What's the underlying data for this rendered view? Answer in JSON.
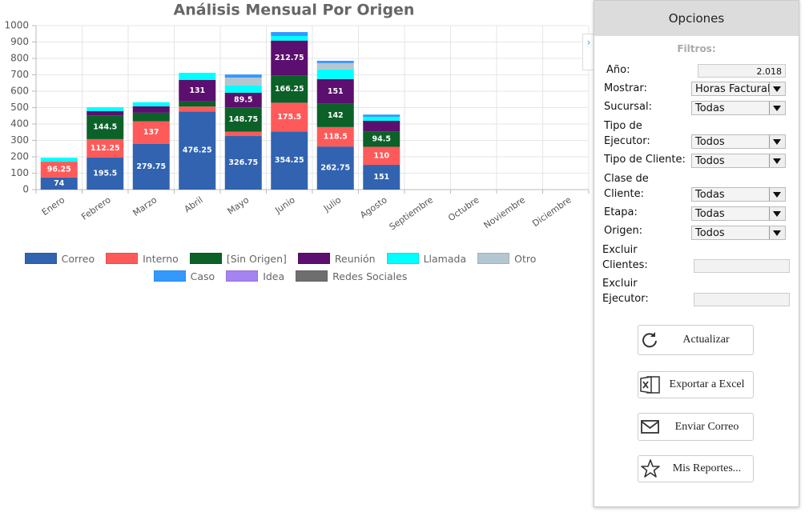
{
  "chart_data": {
    "type": "stacked-bar",
    "title": "Análisis Mensual Por Origen",
    "categories": [
      "Enero",
      "Febrero",
      "Marzo",
      "Abril",
      "Mayo",
      "Junio",
      "Julio",
      "Agosto",
      "Septiembre",
      "Octubre",
      "Noviembre",
      "Diciembre"
    ],
    "series": [
      {
        "name": "Correo",
        "color": "#3163b0",
        "values": [
          74,
          195.5,
          279.75,
          476.25,
          326.75,
          354.25,
          262.75,
          151,
          null,
          null,
          null,
          null
        ]
      },
      {
        "name": "Interno",
        "color": "#ff5a5a",
        "values": [
          96.25,
          112.25,
          137,
          30,
          26,
          175.5,
          118.5,
          110,
          null,
          null,
          null,
          null
        ]
      },
      {
        "name": "[Sin Origen]",
        "color": "#0b6128",
        "values": [
          null,
          144.5,
          52,
          31,
          148.75,
          166.25,
          142,
          94.5,
          null,
          null,
          null,
          null
        ]
      },
      {
        "name": "Reunión",
        "color": "#5b0f6e",
        "values": [
          null,
          26,
          39,
          131,
          89.5,
          212.75,
          151,
          64,
          null,
          null,
          null,
          null
        ]
      },
      {
        "name": "Llamada",
        "color": "#00ffff",
        "values": [
          24,
          24,
          25,
          44,
          43,
          28,
          58,
          24,
          null,
          null,
          null,
          null
        ]
      },
      {
        "name": "Otro",
        "color": "#b4c6d0",
        "values": [
          null,
          null,
          null,
          null,
          49,
          null,
          39,
          null,
          null,
          null,
          null,
          null
        ]
      },
      {
        "name": "Caso",
        "color": "#3399ff",
        "values": [
          null,
          null,
          null,
          null,
          19,
          24,
          14,
          14,
          null,
          null,
          null,
          null
        ]
      },
      {
        "name": "Idea",
        "color": "#a583f0",
        "values": [
          null,
          null,
          null,
          null,
          null,
          null,
          null,
          null,
          null,
          null,
          null,
          null
        ]
      },
      {
        "name": "Redes Sociales",
        "color": "#6e6e6e",
        "values": [
          null,
          null,
          null,
          null,
          null,
          null,
          null,
          null,
          null,
          null,
          null,
          null
        ]
      }
    ],
    "ylim": [
      0,
      1000
    ],
    "yticks": [
      0,
      100,
      200,
      300,
      400,
      500,
      600,
      700,
      800,
      900,
      1000
    ],
    "grid": true,
    "legend": "bottom"
  },
  "panel": {
    "title": "Opciones",
    "filters_label": "Filtros:",
    "fields": [
      {
        "label": "Año:",
        "value": "2.018"
      },
      {
        "label": "Mostrar:",
        "value": "Horas Facturab"
      },
      {
        "label": "Sucursal:",
        "value": "Todas"
      },
      {
        "label": "Tipo de Ejecutor:",
        "value": "Todos"
      },
      {
        "label": "Tipo de Cliente:",
        "value": "Todos"
      },
      {
        "label": "Clase de Cliente:",
        "value": "Todas"
      },
      {
        "label": "Etapa:",
        "value": "Todas"
      },
      {
        "label": "Origen:",
        "value": "Todos"
      },
      {
        "label": "Excluir Clientes:"
      },
      {
        "label": "Excluir Ejecutor:"
      }
    ],
    "buttons": [
      "Actualizar",
      "Exportar a Excel",
      "Enviar Correo",
      "Mis Reportes..."
    ]
  }
}
